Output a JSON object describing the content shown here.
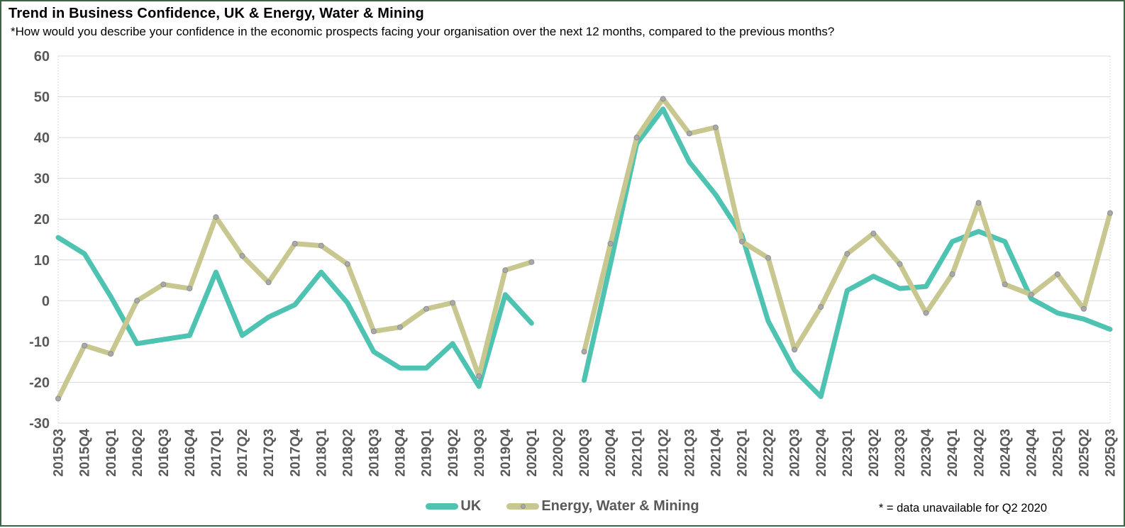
{
  "header": {
    "title": "Trend in Business Confidence, UK & Energy, Water & Mining",
    "subtitle": "*How would you describe your confidence in the economic prospects facing your organisation over the next 12 months, compared to the previous months?"
  },
  "chart_data": {
    "type": "line",
    "categories": [
      "2015Q3",
      "2015Q4",
      "2016Q1",
      "2016Q2",
      "2016Q3",
      "2016Q4",
      "2017Q1",
      "2017Q2",
      "2017Q3",
      "2017Q4",
      "2018Q1",
      "2018Q2",
      "2018Q3",
      "2018Q4",
      "2019Q1",
      "2019Q2",
      "2019Q3",
      "2019Q4",
      "2020Q1",
      "2020Q2",
      "2020Q3",
      "2020Q4",
      "2021Q1",
      "2021Q2",
      "2021Q3",
      "2021Q4",
      "2022Q1",
      "2022Q2",
      "2022Q3",
      "2022Q4",
      "2023Q1",
      "2023Q2",
      "2023Q3",
      "2023Q4",
      "2024Q1",
      "2024Q2",
      "2024Q3",
      "2024Q4",
      "2025Q1",
      "2025Q2",
      "2025Q3"
    ],
    "series": [
      {
        "name": "UK",
        "color": "#4EC3B2",
        "marker": false,
        "values": [
          15.5,
          11.5,
          1,
          -10.5,
          -9.5,
          -8.5,
          7,
          -8.5,
          -4,
          -1,
          7,
          -0.5,
          -12.5,
          -16.5,
          -16.5,
          -10.5,
          -21,
          1.5,
          -5.5,
          null,
          -19.5,
          9,
          38.5,
          47,
          34,
          26,
          16,
          -5,
          -17,
          -23.5,
          2.5,
          6,
          3,
          3.5,
          14.5,
          17,
          14.5,
          0.5,
          -3,
          -4.5,
          -7
        ]
      },
      {
        "name": "Energy, Water & Mining",
        "color": "#C7C78F",
        "marker": true,
        "values": [
          -24,
          -11,
          -13,
          0,
          4,
          3,
          20.5,
          11,
          4.5,
          14,
          13.5,
          9,
          -7.5,
          -6.5,
          -2,
          -0.5,
          -18.5,
          7.5,
          9.5,
          null,
          -12.5,
          14,
          40,
          49.5,
          41,
          42.5,
          14.5,
          10.5,
          -12,
          -1.5,
          11.5,
          16.5,
          9,
          -3,
          6.5,
          24,
          4,
          1.5,
          6.5,
          -2,
          21.5
        ]
      }
    ],
    "ylim": [
      -30,
      60
    ],
    "ytick_step": 10,
    "grid": "horizontal",
    "legend_position": "bottom-center",
    "missing_data_note": "2020Q2 has no data for either series"
  },
  "footnote": "* = data unavailable for Q2 2020",
  "colors": {
    "uk_line": "#4EC3B2",
    "energy_line": "#C7C78F",
    "marker": "#A9A9A9",
    "marker_edge": "#8F8F8F",
    "grid": "#D9D9D9",
    "axis_text": "#595959",
    "frame": "#3E6446"
  }
}
